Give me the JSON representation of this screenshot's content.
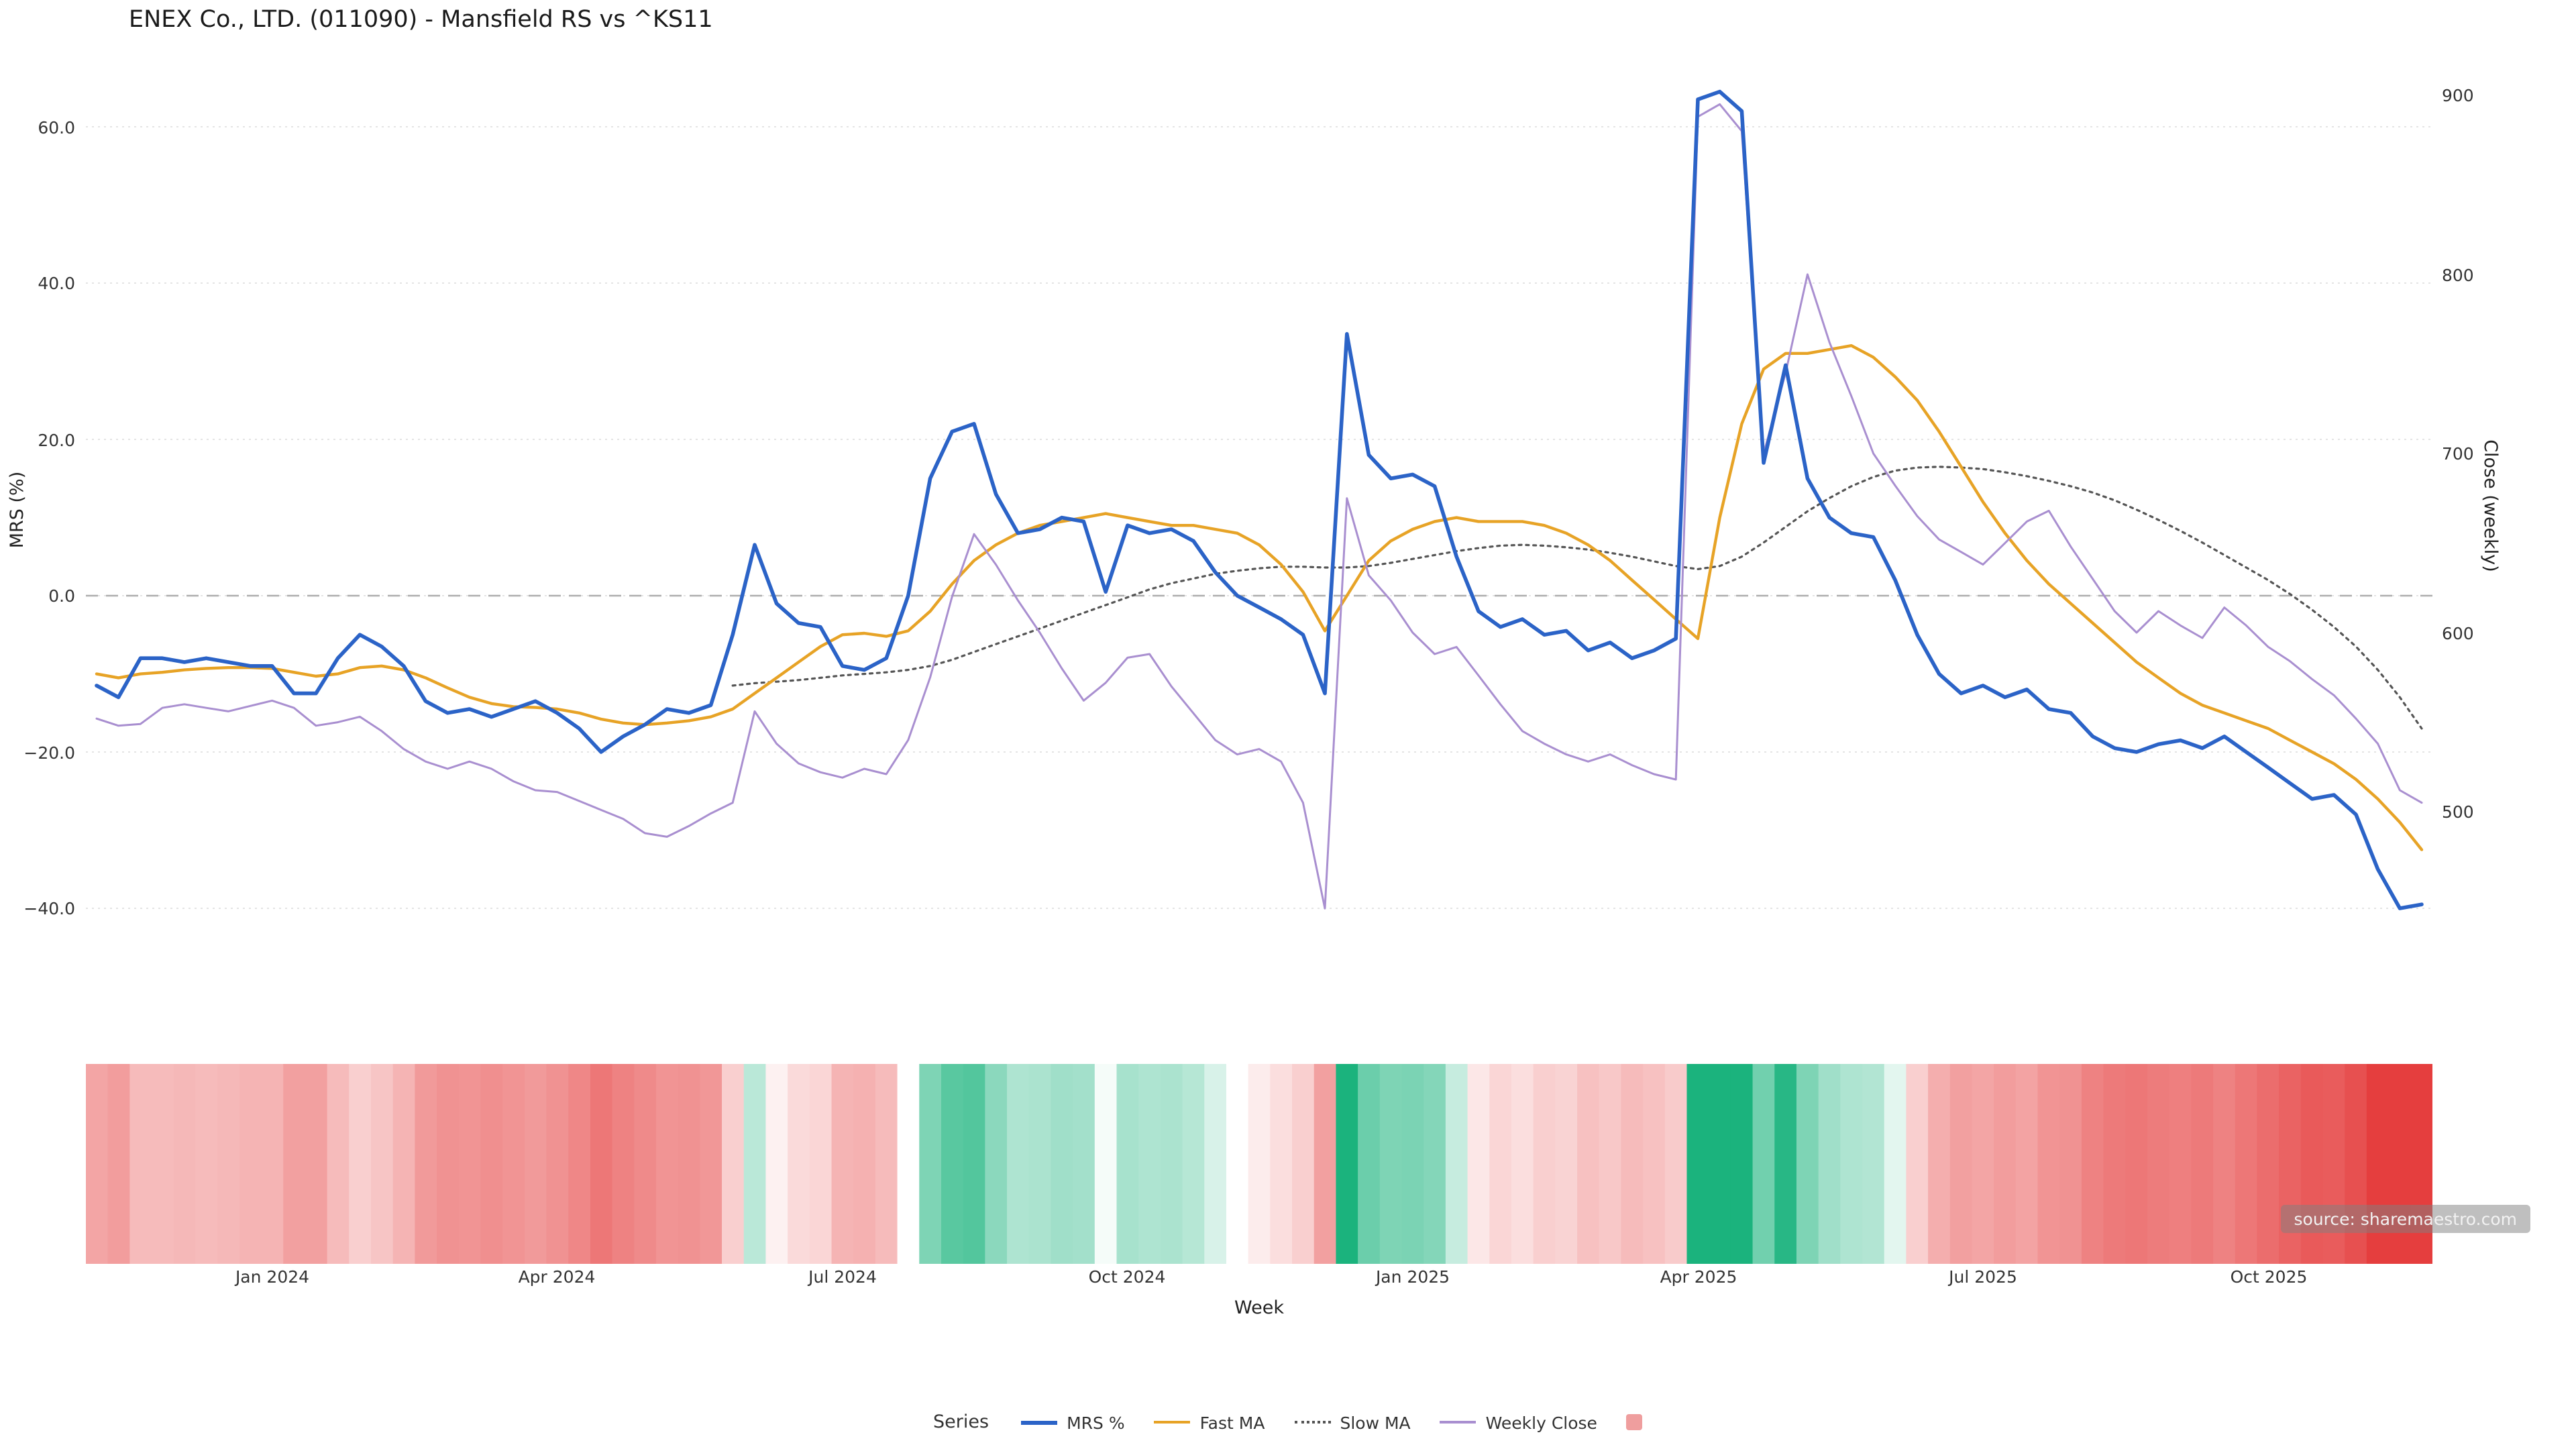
{
  "title": "ENEX Co., LTD. (011090) - Mansfield RS vs ^KS11",
  "source_note": "source: sharemaestro.com",
  "axes": {
    "x_label": "Week",
    "left_label": "MRS (%)",
    "right_label": "Close (weekly)",
    "left_ticks": [
      "60.0",
      "40.0",
      "20.0",
      "0.0",
      "−20.0",
      "−40.0"
    ],
    "right_ticks": [
      "900",
      "800",
      "700",
      "600",
      "500"
    ],
    "x_ticks": [
      "Jan 2024",
      "Apr 2024",
      "Jul 2024",
      "Oct 2024",
      "Jan 2025",
      "Apr 2025",
      "Jul 2025",
      "Oct 2025"
    ]
  },
  "legend": {
    "title": "Series",
    "items": [
      {
        "label": "MRS %",
        "color": "#2b63c7",
        "style": "solid-thick"
      },
      {
        "label": "Fast MA",
        "color": "#e7a326",
        "style": "solid"
      },
      {
        "label": "Slow MA",
        "color": "#555555",
        "style": "dotted"
      },
      {
        "label": "Weekly Close",
        "color": "#a98fd0",
        "style": "solid-thin"
      },
      {
        "label": "",
        "color": "#ef9e9e",
        "style": "tile"
      }
    ]
  },
  "chart_data": {
    "type": "line",
    "title": "ENEX Co., LTD. (011090) - Mansfield RS vs ^KS11",
    "xlabel": "Week",
    "x_unit": "week",
    "x_range": [
      "Nov 2023",
      "Nov 2025"
    ],
    "n_points": 107,
    "x_tick_indices": [
      8,
      21,
      34,
      47,
      60,
      73,
      86,
      99
    ],
    "x_tick_labels": [
      "Jan 2024",
      "Apr 2024",
      "Jul 2024",
      "Oct 2024",
      "Jan 2025",
      "Apr 2025",
      "Jul 2025",
      "Oct 2025"
    ],
    "left_axis": {
      "label": "MRS (%)",
      "tick_values": [
        60,
        40,
        20,
        0,
        -20,
        -40
      ],
      "zero_dashed_line": true,
      "grid": "faint-dotted-horizontal"
    },
    "right_axis": {
      "label": "Close (weekly)",
      "tick_values": [
        900,
        800,
        700,
        600,
        500
      ]
    },
    "series": [
      {
        "name": "MRS %",
        "axis": "left",
        "color": "#2b63c7",
        "style": "solid",
        "values": [
          -11.5,
          -13,
          -8,
          -8,
          -8.5,
          -8,
          -8.5,
          -9,
          -9,
          -12.5,
          -12.5,
          -8,
          -5,
          -6.5,
          -9,
          -13.5,
          -15,
          -14.5,
          -15.5,
          -14.5,
          -13.5,
          -15,
          -17,
          -20,
          -18,
          -16.5,
          -14.5,
          -15,
          -14,
          -5,
          6.5,
          -1,
          -3.5,
          -4,
          -9,
          -9.5,
          -8,
          0,
          15,
          21,
          22,
          13,
          8,
          8.5,
          10,
          9.5,
          0.5,
          9,
          8,
          8.5,
          7,
          3,
          0,
          -1.5,
          -3,
          -5,
          -12.5,
          33.5,
          18,
          15,
          15.5,
          14,
          5,
          -2,
          -4,
          -3,
          -5,
          -4.5,
          -7,
          -6,
          -8,
          -7,
          -5.5,
          63.5,
          64.5,
          62,
          17,
          29.5,
          15,
          10,
          8,
          7.5,
          2,
          -5,
          -10,
          -12.5,
          -11.5,
          -13,
          -12,
          -14.5,
          -15,
          -18,
          -19.5,
          -20,
          -19,
          -18.5,
          -19.5,
          -18,
          -20,
          -22,
          -24,
          -26,
          -25.5,
          -28,
          -35,
          -40,
          -39.5
        ]
      },
      {
        "name": "Fast MA",
        "axis": "left",
        "color": "#e7a326",
        "style": "solid",
        "values": [
          -10,
          -10.5,
          -10,
          -9.8,
          -9.5,
          -9.3,
          -9.2,
          -9.2,
          -9.3,
          -9.8,
          -10.3,
          -10,
          -9.2,
          -9,
          -9.5,
          -10.5,
          -11.8,
          -13,
          -13.8,
          -14.2,
          -14.3,
          -14.5,
          -15,
          -15.8,
          -16.3,
          -16.5,
          -16.3,
          -16,
          -15.5,
          -14.5,
          -12.5,
          -10.5,
          -8.5,
          -6.5,
          -5,
          -4.8,
          -5.2,
          -4.5,
          -2,
          1.5,
          4.5,
          6.5,
          8,
          9,
          9.5,
          10,
          10.5,
          10,
          9.5,
          9,
          9,
          8.5,
          8,
          6.5,
          4,
          0.5,
          -4.5,
          0,
          4.5,
          7,
          8.5,
          9.5,
          10,
          9.5,
          9.5,
          9.5,
          9,
          8,
          6.5,
          4.5,
          2,
          -0.5,
          -3,
          -5.5,
          10,
          22,
          29,
          31,
          31,
          31.5,
          32,
          30.5,
          28,
          25,
          21,
          16.5,
          12,
          8,
          4.5,
          1.5,
          -1,
          -3.5,
          -6,
          -8.5,
          -10.5,
          -12.5,
          -14,
          -15,
          -16,
          -17,
          -18.5,
          -20,
          -21.5,
          -23.5,
          -26,
          -29,
          -32.5
        ]
      },
      {
        "name": "Slow MA",
        "axis": "left",
        "color": "#555555",
        "style": "dotted",
        "values": [
          null,
          null,
          null,
          null,
          null,
          null,
          null,
          null,
          null,
          null,
          null,
          null,
          null,
          null,
          null,
          null,
          null,
          null,
          null,
          null,
          null,
          null,
          null,
          null,
          null,
          null,
          null,
          null,
          null,
          -11.5,
          -11.2,
          -11,
          -10.8,
          -10.5,
          -10.2,
          -10,
          -9.8,
          -9.5,
          -9,
          -8.2,
          -7.2,
          -6.2,
          -5.2,
          -4.2,
          -3.2,
          -2.2,
          -1.2,
          -0.2,
          0.8,
          1.6,
          2.2,
          2.8,
          3.2,
          3.5,
          3.7,
          3.7,
          3.6,
          3.6,
          3.8,
          4.2,
          4.7,
          5.2,
          5.7,
          6.1,
          6.4,
          6.5,
          6.4,
          6.2,
          5.9,
          5.5,
          5,
          4.4,
          3.8,
          3.4,
          3.8,
          5,
          6.8,
          8.8,
          10.8,
          12.5,
          14,
          15.2,
          16,
          16.4,
          16.5,
          16.4,
          16.2,
          15.8,
          15.3,
          14.7,
          14,
          13.2,
          12.2,
          11,
          9.7,
          8.3,
          6.8,
          5.2,
          3.6,
          2,
          0.2,
          -1.8,
          -4,
          -6.5,
          -9.5,
          -13,
          -17
        ]
      },
      {
        "name": "Weekly Close",
        "axis": "right",
        "color": "#a98fd0",
        "style": "solid",
        "values": [
          552,
          548,
          549,
          558,
          560,
          558,
          556,
          559,
          562,
          558,
          548,
          550,
          553,
          545,
          535,
          528,
          524,
          528,
          524,
          517,
          512,
          511,
          506,
          501,
          496,
          488,
          486,
          492,
          499,
          505,
          556,
          538,
          527,
          522,
          519,
          524,
          521,
          540,
          575,
          620,
          655,
          638,
          618,
          600,
          580,
          562,
          572,
          586,
          588,
          570,
          555,
          540,
          532,
          535,
          528,
          505,
          446,
          675,
          632,
          618,
          600,
          588,
          592,
          576,
          560,
          545,
          538,
          532,
          528,
          532,
          526,
          521,
          518,
          888,
          895,
          880,
          700,
          745,
          800,
          762,
          732,
          700,
          682,
          665,
          652,
          645,
          638,
          650,
          662,
          668,
          648,
          630,
          612,
          600,
          612,
          604,
          597,
          614,
          604,
          592,
          584,
          574,
          565,
          552,
          538,
          512,
          505
        ]
      }
    ],
    "heatmap_strip": {
      "encodes": "MRS %",
      "description": "one tile per week under the line panel, red for negative MRS, green for positive MRS, intensity scales with magnitude",
      "negative_color": "#e53e3e",
      "positive_color": "#1bb37d"
    }
  }
}
